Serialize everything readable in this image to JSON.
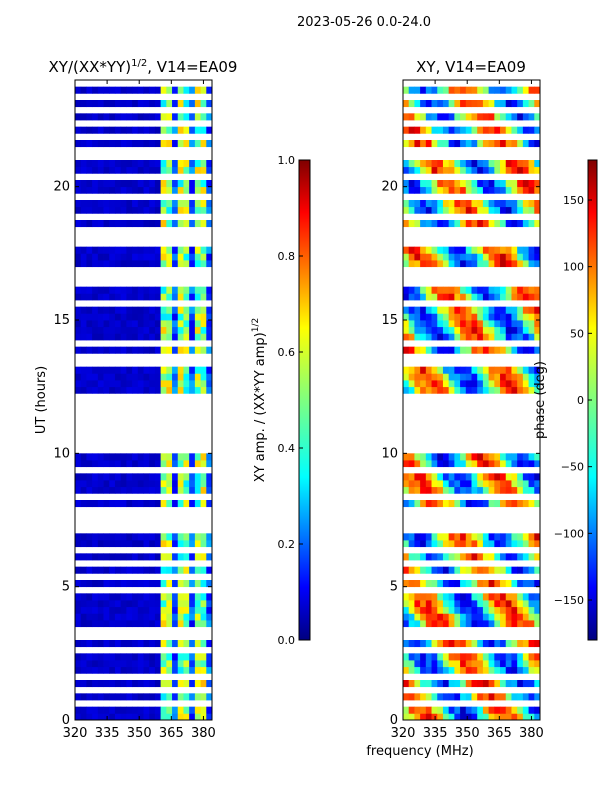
{
  "figure": {
    "suptitle": "2023-05-26 0.0-24.0",
    "xlabel_shared": "frequency (MHz)"
  },
  "chart_data": [
    {
      "type": "heatmap",
      "title_main": "XY/(XX*YY)",
      "title_sup": "1/2",
      "title_tail": ", V14=EA09",
      "ylabel": "UT (hours)",
      "xlim": [
        320,
        384
      ],
      "ylim": [
        0,
        24
      ],
      "xticks": [
        320,
        335,
        350,
        365,
        380
      ],
      "yticks": [
        0,
        5,
        10,
        15,
        20
      ],
      "colorbar": {
        "label_main": "XY amp. / (XX*YY amp)",
        "label_sup": "1/2",
        "range": [
          0.0,
          1.0
        ],
        "ticks": [
          "0.0",
          "0.2",
          "0.4",
          "0.6",
          "0.8",
          "1.0"
        ]
      }
    },
    {
      "type": "heatmap",
      "title": "XY, V14=EA09",
      "xlim": [
        320,
        384
      ],
      "ylim": [
        0,
        24
      ],
      "xticks": [
        320,
        335,
        350,
        365,
        380
      ],
      "yticks": [
        0,
        5,
        10,
        15,
        20
      ],
      "colorbar": {
        "label": "phase (deg)",
        "range": [
          -180,
          180
        ],
        "ticks": [
          "150",
          "100",
          "50",
          "0",
          "−50",
          "−100",
          "−150"
        ]
      }
    }
  ],
  "colormap": [
    "#00007f",
    "#0000ff",
    "#007fff",
    "#00ffff",
    "#7fff7f",
    "#ffff00",
    "#ff7f00",
    "#ff0000",
    "#7f0000"
  ]
}
